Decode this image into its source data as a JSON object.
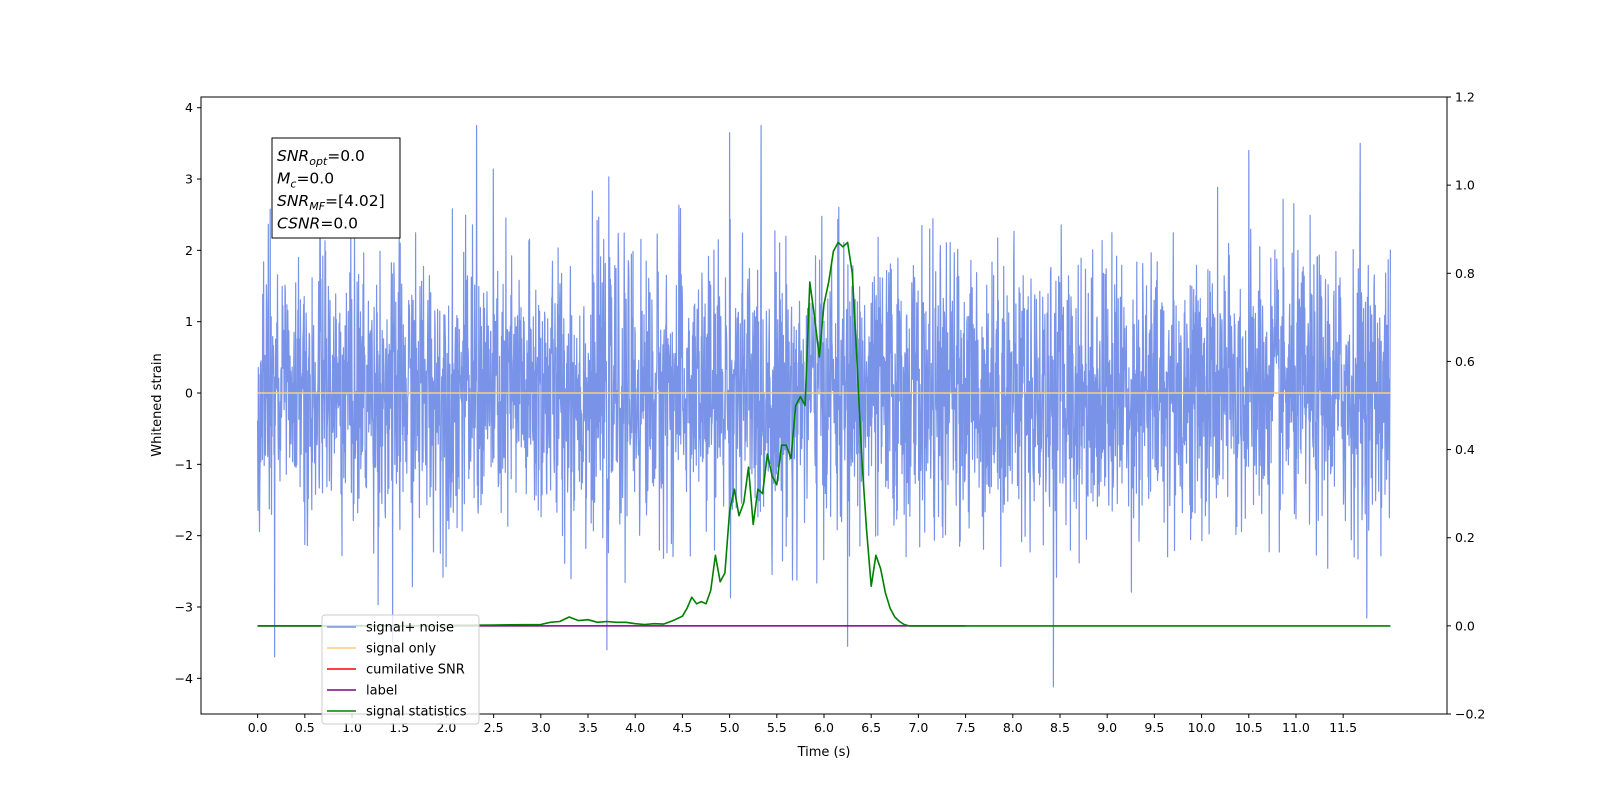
{
  "chart_data": {
    "type": "line",
    "xlabel": "Time (s)",
    "ylabel": "Whitened strain",
    "xlim": [
      -0.6,
      12.6
    ],
    "ylim_left": [
      -4.5,
      4.15
    ],
    "ylim_right": [
      -0.2,
      1.2
    ],
    "x_ticks": [
      0.0,
      0.5,
      1.0,
      1.5,
      2.0,
      2.5,
      3.0,
      3.5,
      4.0,
      4.5,
      5.0,
      5.5,
      6.0,
      6.5,
      7.0,
      7.5,
      8.0,
      8.5,
      9.0,
      9.5,
      10.0,
      10.5,
      11.0,
      11.5
    ],
    "x_tick_labels": [
      "0.0",
      "0.5",
      "1.0",
      "1.5",
      "2.0",
      "2.5",
      "3.0",
      "3.5",
      "4.0",
      "4.5",
      "5.0",
      "5.5",
      "6.0",
      "6.5",
      "7.0",
      "7.5",
      "8.0",
      "8.5",
      "9.0",
      "9.5",
      "10.0",
      "10.5",
      "11.0",
      "11.5"
    ],
    "y_left_ticks": [
      -4,
      -3,
      -2,
      -1,
      0,
      1,
      2,
      3,
      4
    ],
    "y_left_tick_labels": [
      "−4",
      "−3",
      "−2",
      "−1",
      "0",
      "1",
      "2",
      "3",
      "4"
    ],
    "y_right_ticks": [
      -0.2,
      0.0,
      0.2,
      0.4,
      0.6,
      0.8,
      1.0,
      1.2
    ],
    "y_right_tick_labels": [
      "−0.2",
      "0.0",
      "0.2",
      "0.4",
      "0.6",
      "0.8",
      "1.0",
      "1.2"
    ],
    "grid": false,
    "legend_placement": "lower-left",
    "info_box": {
      "lines": [
        {
          "main": "SNR",
          "sub": "opt",
          "rest": "=0.0"
        },
        {
          "main": "M",
          "sub": "c",
          "rest": "=0.0"
        },
        {
          "main": "SNR",
          "sub": "MF",
          "rest": "=[4.02]"
        },
        {
          "main": "CSNR",
          "sub": "",
          "rest": "=0.0"
        }
      ]
    },
    "legend": [
      {
        "name": "signal+ noise",
        "color": "#7893e8"
      },
      {
        "name": "signal only",
        "color": "#ffcc80"
      },
      {
        "name": "cumilative SNR",
        "color": "#ff0000"
      },
      {
        "name": "label",
        "color": "#800080"
      },
      {
        "name": "signal statistics",
        "color": "#008000"
      }
    ],
    "series": [
      {
        "name": "signal+ noise",
        "axis": "left",
        "color": "#7893e8",
        "x_range": [
          0.0,
          12.0
        ],
        "typical_range": [
          -2.0,
          2.0
        ],
        "max": 3.75,
        "min": -4.12
      },
      {
        "name": "signal only",
        "axis": "left",
        "color": "#ffcc80",
        "x": [
          0.0,
          12.0
        ],
        "y": [
          0.0,
          0.0
        ]
      },
      {
        "name": "label",
        "axis": "right",
        "color": "#800080",
        "x": [
          0.0,
          7.5
        ],
        "y": [
          0.0,
          0.0
        ]
      },
      {
        "name": "signal statistics",
        "axis": "right",
        "color": "#008000",
        "x": [
          0.0,
          1.0,
          2.0,
          2.5,
          3.0,
          3.1,
          3.2,
          3.3,
          3.4,
          3.5,
          3.6,
          3.7,
          3.8,
          3.9,
          4.0,
          4.1,
          4.2,
          4.3,
          4.4,
          4.5,
          4.55,
          4.6,
          4.65,
          4.7,
          4.75,
          4.8,
          4.85,
          4.9,
          4.95,
          5.0,
          5.05,
          5.1,
          5.15,
          5.2,
          5.25,
          5.3,
          5.35,
          5.4,
          5.45,
          5.5,
          5.55,
          5.6,
          5.65,
          5.7,
          5.75,
          5.8,
          5.85,
          5.9,
          5.95,
          6.0,
          6.05,
          6.1,
          6.15,
          6.2,
          6.25,
          6.3,
          6.35,
          6.4,
          6.45,
          6.5,
          6.55,
          6.6,
          6.65,
          6.7,
          6.75,
          6.8,
          6.85,
          6.9,
          6.95,
          7.0,
          7.05,
          7.1,
          7.15,
          7.2,
          7.25,
          7.3,
          7.4,
          7.5,
          7.6,
          7.8,
          8.0,
          8.5,
          9.0,
          10.0,
          11.0,
          12.0
        ],
        "y": [
          0.0,
          0.0,
          0.001,
          0.002,
          0.003,
          0.008,
          0.01,
          0.02,
          0.012,
          0.014,
          0.008,
          0.01,
          0.008,
          0.008,
          0.005,
          0.003,
          0.005,
          0.004,
          0.012,
          0.022,
          0.04,
          0.065,
          0.05,
          0.055,
          0.05,
          0.08,
          0.16,
          0.1,
          0.12,
          0.26,
          0.31,
          0.25,
          0.28,
          0.36,
          0.23,
          0.31,
          0.3,
          0.39,
          0.34,
          0.32,
          0.41,
          0.41,
          0.38,
          0.5,
          0.52,
          0.5,
          0.78,
          0.7,
          0.61,
          0.73,
          0.78,
          0.85,
          0.87,
          0.86,
          0.87,
          0.8,
          0.6,
          0.38,
          0.22,
          0.09,
          0.16,
          0.13,
          0.075,
          0.04,
          0.02,
          0.01,
          0.003,
          0.0,
          0.0,
          0.0,
          0.0,
          0.0,
          0.0,
          0.0,
          0.0,
          0.0,
          0.0,
          0.0,
          0.0,
          0.0,
          0.0,
          0.0,
          0.0,
          0.0,
          0.0,
          0.0
        ]
      }
    ]
  }
}
